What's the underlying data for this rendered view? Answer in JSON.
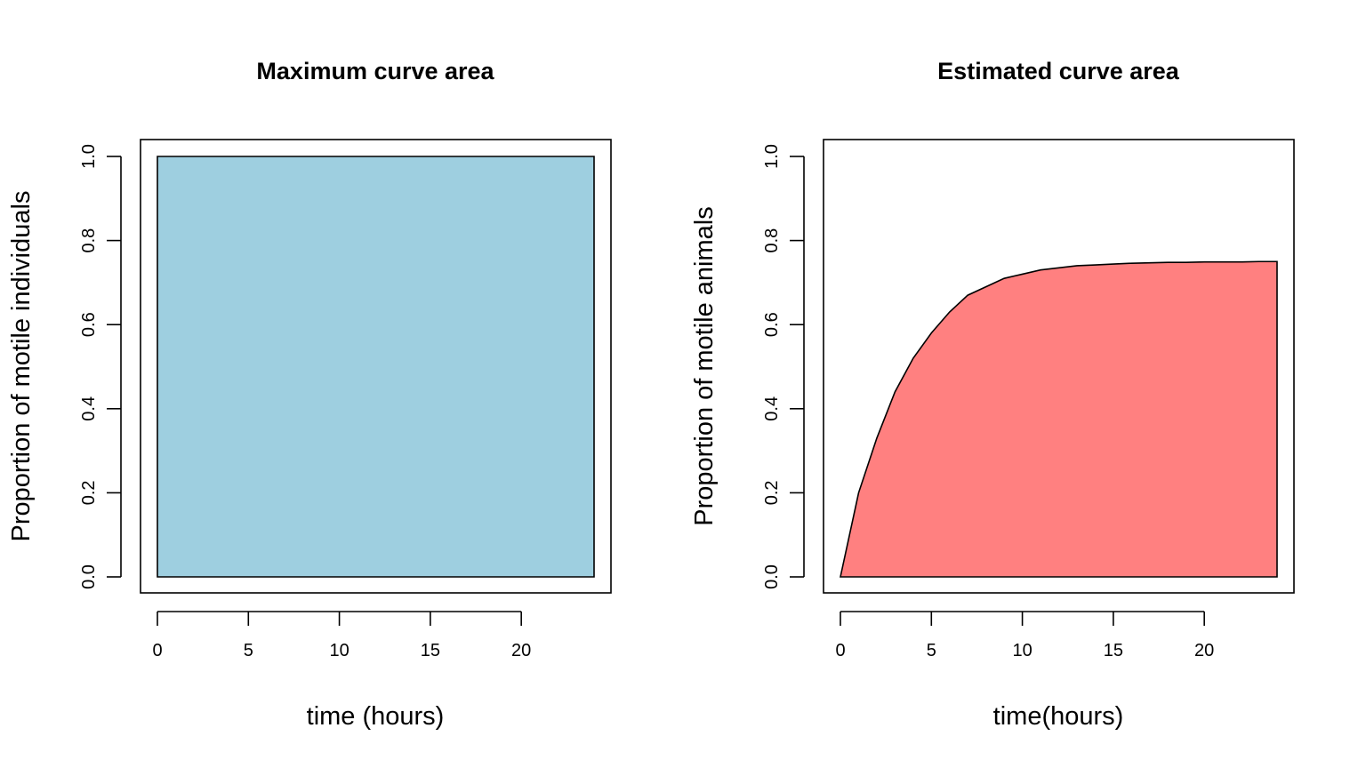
{
  "chart_data": [
    {
      "type": "area",
      "title": "Maximum curve area",
      "xlabel": "time (hours)",
      "ylabel": "Proportion of motile individuals",
      "xlim": [
        0,
        24
      ],
      "ylim": [
        0,
        1
      ],
      "xticks": [
        "0",
        "5",
        "10",
        "15",
        "20"
      ],
      "yticks": [
        "0.0",
        "0.2",
        "0.4",
        "0.6",
        "0.8",
        "1.0"
      ],
      "fill_color": "#9ecfe0",
      "grid": false,
      "x": [
        0,
        24
      ],
      "y": [
        1,
        1
      ]
    },
    {
      "type": "area",
      "title": "Estimated curve area",
      "xlabel": "time(hours)",
      "ylabel": "Proportion of motile animals",
      "xlim": [
        0,
        24
      ],
      "ylim": [
        0,
        1
      ],
      "xticks": [
        "0",
        "5",
        "10",
        "15",
        "20"
      ],
      "yticks": [
        "0.0",
        "0.2",
        "0.4",
        "0.6",
        "0.8",
        "1.0"
      ],
      "fill_color": "#ff8080",
      "grid": false,
      "x": [
        0,
        1,
        2,
        3,
        4,
        5,
        6,
        7,
        8,
        9,
        10,
        11,
        12,
        13,
        14,
        15,
        16,
        17,
        18,
        19,
        20,
        21,
        22,
        23,
        24
      ],
      "y": [
        0,
        0.2,
        0.33,
        0.44,
        0.52,
        0.58,
        0.63,
        0.67,
        0.69,
        0.71,
        0.72,
        0.73,
        0.735,
        0.74,
        0.742,
        0.744,
        0.746,
        0.747,
        0.748,
        0.748,
        0.749,
        0.749,
        0.749,
        0.75,
        0.75
      ]
    }
  ]
}
